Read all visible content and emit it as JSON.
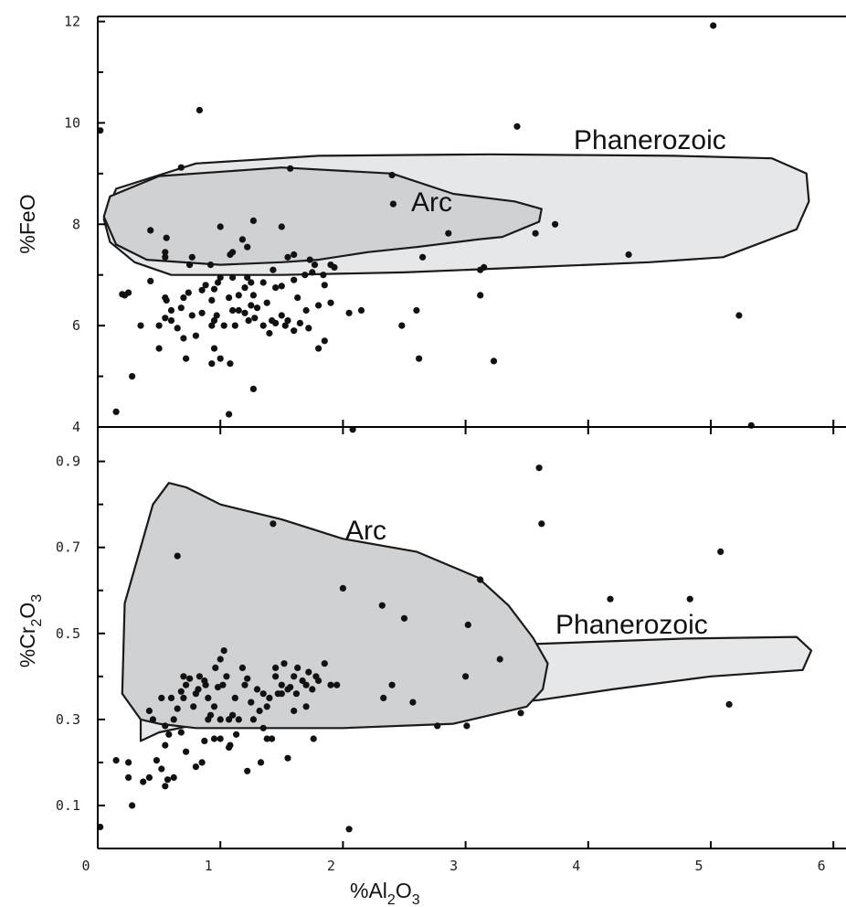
{
  "chart_data": [
    {
      "type": "scatter",
      "panel": "top",
      "xlabel": "%Al2O3",
      "ylabel": "%FeO",
      "xlim": [
        0,
        6.1
      ],
      "ylim": [
        4,
        12.1
      ],
      "yticks": [
        "4",
        "6",
        "8",
        "10",
        "12"
      ],
      "regions": [
        {
          "name": "Phanerozoic",
          "fill": "#e6e7e8",
          "polygon": [
            [
              0.05,
              8.1
            ],
            [
              0.15,
              8.7
            ],
            [
              0.8,
              9.2
            ],
            [
              1.8,
              9.35
            ],
            [
              3.2,
              9.38
            ],
            [
              4.7,
              9.35
            ],
            [
              5.5,
              9.3
            ],
            [
              5.78,
              9.0
            ],
            [
              5.8,
              8.45
            ],
            [
              5.7,
              7.9
            ],
            [
              5.1,
              7.35
            ],
            [
              4.5,
              7.25
            ],
            [
              3.5,
              7.15
            ],
            [
              2.5,
              7.05
            ],
            [
              1.5,
              7.0
            ],
            [
              0.6,
              7.0
            ],
            [
              0.3,
              7.25
            ],
            [
              0.1,
              7.65
            ],
            [
              0.05,
              8.1
            ]
          ]
        },
        {
          "name": "Arc",
          "fill": "#d0d1d3",
          "polygon": [
            [
              0.05,
              8.15
            ],
            [
              0.1,
              8.55
            ],
            [
              0.5,
              8.95
            ],
            [
              1.5,
              9.12
            ],
            [
              2.4,
              9.0
            ],
            [
              2.9,
              8.6
            ],
            [
              3.4,
              8.45
            ],
            [
              3.62,
              8.3
            ],
            [
              3.6,
              8.05
            ],
            [
              3.3,
              7.75
            ],
            [
              3.1,
              7.7
            ],
            [
              2.6,
              7.55
            ],
            [
              2.2,
              7.45
            ],
            [
              1.8,
              7.3
            ],
            [
              1.5,
              7.25
            ],
            [
              1.0,
              7.2
            ],
            [
              0.4,
              7.3
            ],
            [
              0.15,
              7.6
            ],
            [
              0.05,
              8.15
            ]
          ]
        }
      ],
      "points": [
        [
          0.02,
          9.85
        ],
        [
          0.83,
          10.25
        ],
        [
          3.42,
          9.93
        ],
        [
          5.02,
          11.92
        ],
        [
          0.68,
          9.12
        ],
        [
          1.57,
          9.1
        ],
        [
          2.4,
          8.97
        ],
        [
          2.41,
          8.4
        ],
        [
          3.73,
          8.0
        ],
        [
          3.57,
          7.82
        ],
        [
          2.86,
          7.82
        ],
        [
          4.33,
          7.4
        ],
        [
          0.43,
          7.88
        ],
        [
          0.55,
          7.45
        ],
        [
          0.55,
          7.35
        ],
        [
          0.56,
          7.73
        ],
        [
          1.27,
          8.07
        ],
        [
          1.5,
          7.95
        ],
        [
          1.0,
          7.95
        ],
        [
          1.18,
          7.7
        ],
        [
          1.22,
          7.55
        ],
        [
          0.77,
          7.35
        ],
        [
          0.92,
          7.2
        ],
        [
          0.75,
          7.2
        ],
        [
          1.08,
          7.4
        ],
        [
          1.1,
          7.45
        ],
        [
          1.55,
          7.35
        ],
        [
          1.6,
          7.4
        ],
        [
          1.43,
          7.1
        ],
        [
          1.75,
          7.05
        ],
        [
          1.69,
          7.0
        ],
        [
          1.77,
          7.2
        ],
        [
          1.84,
          7.0
        ],
        [
          1.93,
          7.15
        ],
        [
          2.65,
          7.35
        ],
        [
          3.15,
          7.15
        ],
        [
          3.12,
          7.1
        ],
        [
          0.2,
          6.62
        ],
        [
          0.25,
          6.65
        ],
        [
          0.43,
          6.88
        ],
        [
          0.55,
          6.55
        ],
        [
          0.56,
          6.5
        ],
        [
          0.6,
          6.3
        ],
        [
          0.68,
          6.35
        ],
        [
          0.7,
          6.55
        ],
        [
          0.74,
          6.65
        ],
        [
          0.77,
          6.2
        ],
        [
          0.85,
          6.7
        ],
        [
          0.88,
          6.8
        ],
        [
          0.93,
          6.5
        ],
        [
          0.95,
          6.72
        ],
        [
          0.98,
          6.85
        ],
        [
          1.0,
          6.95
        ],
        [
          1.07,
          6.55
        ],
        [
          1.1,
          6.95
        ],
        [
          1.15,
          6.6
        ],
        [
          1.2,
          6.75
        ],
        [
          1.22,
          6.95
        ],
        [
          1.25,
          6.85
        ],
        [
          1.27,
          6.6
        ],
        [
          1.35,
          6.85
        ],
        [
          1.38,
          6.45
        ],
        [
          1.45,
          6.75
        ],
        [
          1.5,
          6.78
        ],
        [
          1.6,
          6.9
        ],
        [
          1.63,
          6.55
        ],
        [
          1.7,
          6.3
        ],
        [
          1.8,
          6.4
        ],
        [
          1.85,
          6.8
        ],
        [
          1.9,
          6.45
        ],
        [
          2.05,
          6.25
        ],
        [
          2.15,
          6.3
        ],
        [
          0.35,
          6.0
        ],
        [
          0.5,
          6.0
        ],
        [
          0.55,
          6.15
        ],
        [
          0.6,
          6.1
        ],
        [
          0.7,
          5.75
        ],
        [
          0.8,
          5.8
        ],
        [
          0.85,
          6.25
        ],
        [
          0.93,
          6.0
        ],
        [
          0.97,
          6.2
        ],
        [
          1.03,
          6.0
        ],
        [
          1.1,
          6.3
        ],
        [
          1.15,
          6.3
        ],
        [
          1.2,
          6.25
        ],
        [
          1.23,
          6.1
        ],
        [
          1.25,
          6.4
        ],
        [
          1.28,
          6.15
        ],
        [
          1.3,
          6.35
        ],
        [
          1.35,
          6.0
        ],
        [
          1.4,
          5.85
        ],
        [
          1.45,
          6.05
        ],
        [
          1.5,
          6.2
        ],
        [
          1.53,
          6.0
        ],
        [
          1.55,
          6.1
        ],
        [
          1.6,
          5.9
        ],
        [
          1.65,
          6.05
        ],
        [
          1.72,
          5.95
        ],
        [
          1.8,
          5.55
        ],
        [
          1.85,
          5.7
        ],
        [
          0.5,
          5.55
        ],
        [
          0.72,
          5.35
        ],
        [
          0.95,
          5.55
        ],
        [
          1.0,
          5.35
        ],
        [
          1.08,
          5.25
        ],
        [
          0.93,
          5.25
        ],
        [
          0.28,
          5.0
        ],
        [
          0.15,
          4.3
        ],
        [
          1.07,
          4.25
        ],
        [
          1.27,
          4.75
        ],
        [
          2.08,
          3.95
        ],
        [
          2.48,
          6.0
        ],
        [
          2.6,
          6.3
        ],
        [
          2.62,
          5.35
        ],
        [
          3.12,
          6.6
        ],
        [
          3.23,
          5.3
        ],
        [
          5.23,
          6.2
        ],
        [
          5.33,
          4.03
        ],
        [
          1.9,
          7.2
        ],
        [
          1.73,
          7.3
        ],
        [
          0.22,
          6.6
        ],
        [
          0.95,
          6.1
        ],
        [
          1.42,
          6.1
        ],
        [
          1.12,
          6.0
        ],
        [
          0.65,
          5.95
        ]
      ]
    },
    {
      "type": "scatter",
      "panel": "bottom",
      "xlabel": "%Al2O3",
      "ylabel": "%Cr2O3",
      "xlim": [
        0,
        6.1
      ],
      "ylim": [
        0.0,
        0.98
      ],
      "xticks": [
        "0",
        "1",
        "2",
        "3",
        "4",
        "5",
        "6"
      ],
      "yticks": [
        "0.1",
        "0.3",
        "0.5",
        "0.7",
        "0.9"
      ],
      "regions": [
        {
          "name": "Phanerozoic",
          "fill": "#e6e7e8",
          "polygon": [
            [
              0.35,
              0.25
            ],
            [
              0.35,
              0.44
            ],
            [
              0.5,
              0.47
            ],
            [
              1.1,
              0.505
            ],
            [
              1.5,
              0.49
            ],
            [
              2.5,
              0.485
            ],
            [
              3.5,
              0.475
            ],
            [
              4.8,
              0.488
            ],
            [
              5.7,
              0.492
            ],
            [
              5.82,
              0.46
            ],
            [
              5.75,
              0.415
            ],
            [
              5.0,
              0.4
            ],
            [
              4.2,
              0.37
            ],
            [
              3.6,
              0.345
            ],
            [
              3.0,
              0.33
            ],
            [
              2.0,
              0.305
            ],
            [
              1.0,
              0.3
            ],
            [
              0.5,
              0.27
            ],
            [
              0.35,
              0.25
            ]
          ]
        },
        {
          "name": "Arc",
          "fill": "#d0d1d3",
          "polygon": [
            [
              0.2,
              0.36
            ],
            [
              0.22,
              0.57
            ],
            [
              0.45,
              0.8
            ],
            [
              0.58,
              0.85
            ],
            [
              0.72,
              0.84
            ],
            [
              1.0,
              0.8
            ],
            [
              1.5,
              0.765
            ],
            [
              2.0,
              0.72
            ],
            [
              2.6,
              0.69
            ],
            [
              3.1,
              0.63
            ],
            [
              3.35,
              0.565
            ],
            [
              3.55,
              0.49
            ],
            [
              3.67,
              0.43
            ],
            [
              3.63,
              0.37
            ],
            [
              3.5,
              0.33
            ],
            [
              2.9,
              0.29
            ],
            [
              2.0,
              0.28
            ],
            [
              1.5,
              0.28
            ],
            [
              0.8,
              0.28
            ],
            [
              0.5,
              0.29
            ],
            [
              0.35,
              0.3
            ],
            [
              0.2,
              0.36
            ]
          ]
        }
      ],
      "points": [
        [
          1.43,
          0.755
        ],
        [
          0.65,
          0.68
        ],
        [
          3.6,
          0.885
        ],
        [
          3.62,
          0.755
        ],
        [
          5.08,
          0.69
        ],
        [
          3.12,
          0.625
        ],
        [
          2.0,
          0.605
        ],
        [
          2.32,
          0.565
        ],
        [
          2.5,
          0.535
        ],
        [
          3.02,
          0.52
        ],
        [
          4.18,
          0.58
        ],
        [
          4.83,
          0.58
        ],
        [
          3.28,
          0.44
        ],
        [
          3.0,
          0.4
        ],
        [
          2.4,
          0.38
        ],
        [
          2.33,
          0.35
        ],
        [
          2.57,
          0.34
        ],
        [
          1.95,
          0.38
        ],
        [
          3.45,
          0.315
        ],
        [
          5.15,
          0.335
        ],
        [
          2.77,
          0.285
        ],
        [
          3.01,
          0.285
        ],
        [
          1.76,
          0.255
        ],
        [
          1.42,
          0.255
        ],
        [
          1.38,
          0.255
        ],
        [
          0.02,
          0.05
        ],
        [
          2.05,
          0.045
        ],
        [
          0.28,
          0.1
        ],
        [
          0.15,
          0.205
        ],
        [
          0.25,
          0.2
        ],
        [
          0.25,
          0.165
        ],
        [
          0.37,
          0.155
        ],
        [
          0.42,
          0.165
        ],
        [
          0.48,
          0.205
        ],
        [
          0.52,
          0.185
        ],
        [
          0.55,
          0.145
        ],
        [
          0.57,
          0.16
        ],
        [
          0.62,
          0.165
        ],
        [
          0.8,
          0.19
        ],
        [
          0.85,
          0.2
        ],
        [
          0.87,
          0.25
        ],
        [
          0.95,
          0.255
        ],
        [
          1.0,
          0.255
        ],
        [
          1.07,
          0.235
        ],
        [
          1.08,
          0.24
        ],
        [
          1.13,
          0.265
        ],
        [
          1.22,
          0.18
        ],
        [
          1.33,
          0.2
        ],
        [
          1.55,
          0.21
        ],
        [
          0.58,
          0.265
        ],
        [
          0.72,
          0.225
        ],
        [
          0.68,
          0.27
        ],
        [
          0.55,
          0.24
        ],
        [
          0.55,
          0.285
        ],
        [
          0.45,
          0.3
        ],
        [
          0.42,
          0.32
        ],
        [
          0.52,
          0.35
        ],
        [
          0.62,
          0.3
        ],
        [
          0.65,
          0.325
        ],
        [
          0.68,
          0.365
        ],
        [
          0.7,
          0.35
        ],
        [
          0.7,
          0.4
        ],
        [
          0.72,
          0.38
        ],
        [
          0.75,
          0.395
        ],
        [
          0.78,
          0.33
        ],
        [
          0.8,
          0.36
        ],
        [
          0.82,
          0.37
        ],
        [
          0.83,
          0.4
        ],
        [
          0.87,
          0.39
        ],
        [
          0.88,
          0.38
        ],
        [
          0.9,
          0.35
        ],
        [
          0.92,
          0.31
        ],
        [
          0.95,
          0.33
        ],
        [
          0.96,
          0.42
        ],
        [
          0.98,
          0.375
        ],
        [
          1.0,
          0.44
        ],
        [
          1.02,
          0.38
        ],
        [
          1.03,
          0.46
        ],
        [
          1.05,
          0.4
        ],
        [
          1.07,
          0.3
        ],
        [
          1.1,
          0.31
        ],
        [
          1.12,
          0.35
        ],
        [
          1.15,
          0.3
        ],
        [
          1.18,
          0.42
        ],
        [
          1.2,
          0.38
        ],
        [
          1.22,
          0.395
        ],
        [
          1.25,
          0.34
        ],
        [
          1.27,
          0.3
        ],
        [
          1.3,
          0.37
        ],
        [
          1.32,
          0.32
        ],
        [
          1.35,
          0.36
        ],
        [
          1.38,
          0.33
        ],
        [
          1.4,
          0.35
        ],
        [
          1.45,
          0.42
        ],
        [
          1.47,
          0.36
        ],
        [
          1.5,
          0.38
        ],
        [
          1.52,
          0.43
        ],
        [
          1.55,
          0.37
        ],
        [
          1.57,
          0.375
        ],
        [
          1.6,
          0.4
        ],
        [
          1.62,
          0.36
        ],
        [
          1.63,
          0.42
        ],
        [
          1.67,
          0.39
        ],
        [
          1.7,
          0.38
        ],
        [
          1.72,
          0.41
        ],
        [
          1.75,
          0.37
        ],
        [
          1.78,
          0.4
        ],
        [
          1.8,
          0.39
        ],
        [
          1.85,
          0.43
        ],
        [
          1.9,
          0.38
        ],
        [
          1.6,
          0.32
        ],
        [
          1.7,
          0.33
        ],
        [
          1.5,
          0.36
        ],
        [
          1.45,
          0.4
        ],
        [
          0.6,
          0.35
        ],
        [
          0.9,
          0.3
        ],
        [
          1.0,
          0.3
        ],
        [
          1.35,
          0.28
        ]
      ]
    }
  ],
  "labels": {
    "top_phanerozoic": "Phanerozoic",
    "top_arc": "Arc",
    "bottom_arc": "Arc",
    "bottom_phanerozoic": "Phanerozoic",
    "ylabel_top": "%FeO",
    "ylabel_bottom_main": "%Cr",
    "ylabel_bottom_sub1": "2",
    "ylabel_bottom_mid": "O",
    "ylabel_bottom_sub2": "3",
    "xlabel_main": "%Al",
    "xlabel_sub1": "2",
    "xlabel_mid": "O",
    "xlabel_sub2": "3"
  }
}
